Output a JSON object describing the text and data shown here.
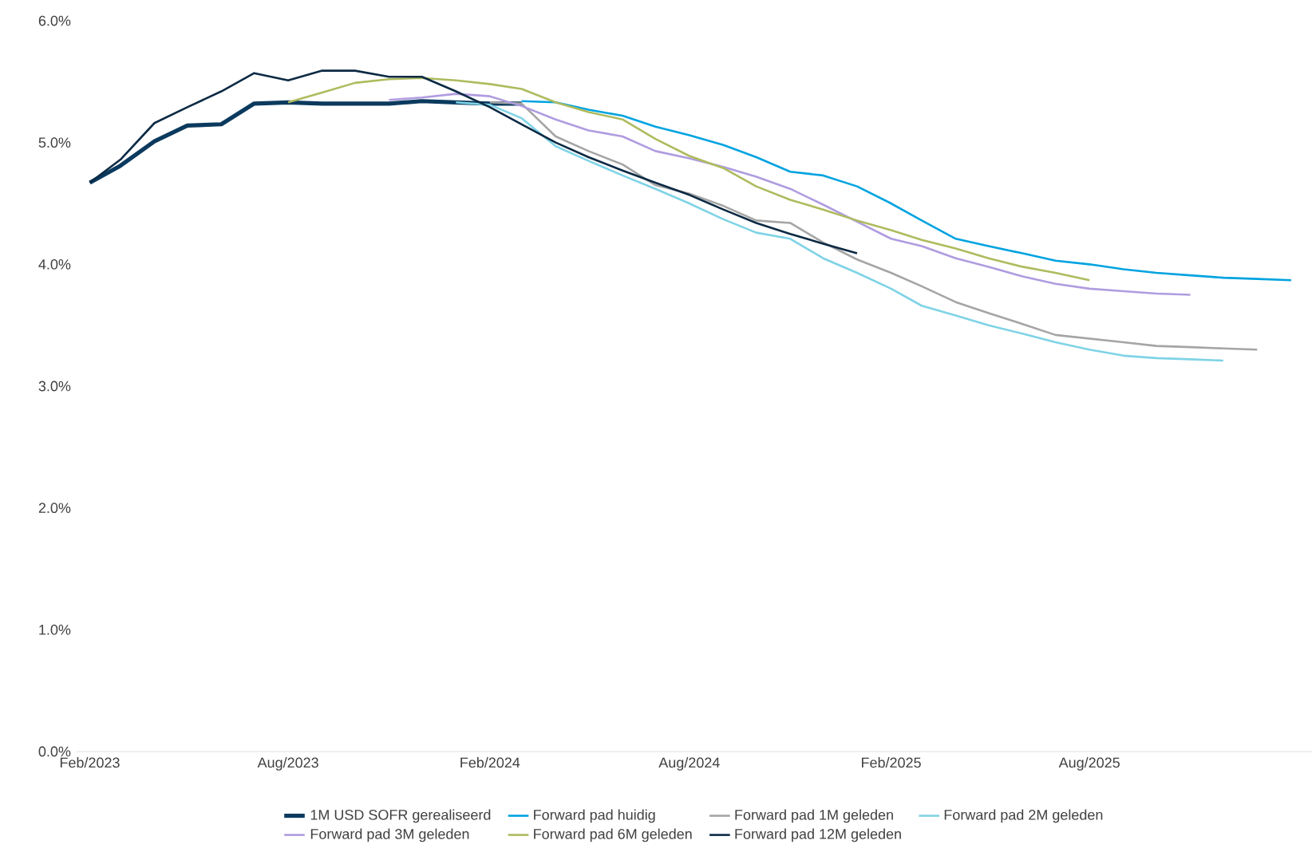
{
  "chart_data": {
    "type": "line",
    "xlim": [
      "2023-01-20",
      "2026-02-20"
    ],
    "xticks": [
      {
        "value": "2023-02",
        "label": "Feb/2023"
      },
      {
        "value": "2023-08",
        "label": "Aug/2023"
      },
      {
        "value": "2024-02",
        "label": "Feb/2024"
      },
      {
        "value": "2024-08",
        "label": "Aug/2024"
      },
      {
        "value": "2025-02",
        "label": "Feb/2025"
      },
      {
        "value": "2025-08",
        "label": "Aug/2025"
      }
    ],
    "ylim": [
      0,
      6
    ],
    "yticks": [
      {
        "value": 0,
        "label": "0.0%"
      },
      {
        "value": 1,
        "label": "1.0%"
      },
      {
        "value": 2,
        "label": "2.0%"
      },
      {
        "value": 3,
        "label": "3.0%"
      },
      {
        "value": 4,
        "label": "4.0%"
      },
      {
        "value": 5,
        "label": "5.0%"
      },
      {
        "value": 6,
        "label": "6.0%"
      }
    ],
    "grid": false,
    "legend": "bottom",
    "marker": "none",
    "line_style": "solid",
    "series": [
      {
        "name": "1M USD SOFR gerealiseerd",
        "color": "#0b3a5e",
        "x": [
          "2023-02",
          "2023-03",
          "2023-04",
          "2023-05",
          "2023-06",
          "2023-07",
          "2023-08",
          "2023-09",
          "2023-10",
          "2023-11",
          "2023-12",
          "2024-01",
          "2024-02",
          "2024-03"
        ],
        "values": [
          4.67,
          4.81,
          5.01,
          5.14,
          5.15,
          5.32,
          5.33,
          5.32,
          5.32,
          5.32,
          5.34,
          5.33,
          5.32,
          5.32
        ]
      },
      {
        "name": "Forward pad huidig",
        "color": "#00a3e0",
        "x": [
          "2024-03",
          "2024-04",
          "2024-05",
          "2024-06",
          "2024-07",
          "2024-08",
          "2024-09",
          "2024-10",
          "2024-11",
          "2024-12",
          "2025-01",
          "2025-02",
          "2025-03",
          "2025-04",
          "2025-05",
          "2025-06",
          "2025-07",
          "2025-08",
          "2025-09",
          "2025-10",
          "2025-11",
          "2025-12",
          "2026-01",
          "2026-02"
        ],
        "values": [
          5.34,
          5.33,
          5.27,
          5.22,
          5.13,
          5.06,
          4.98,
          4.88,
          4.76,
          4.73,
          4.64,
          4.5,
          4.36,
          4.21,
          4.15,
          4.09,
          4.03,
          4.0,
          3.96,
          3.93,
          3.91,
          3.89,
          3.88,
          3.87
        ]
      },
      {
        "name": "Forward pad 1M geleden",
        "color": "#a5a5a5",
        "x": [
          "2024-02",
          "2024-03",
          "2024-04",
          "2024-05",
          "2024-06",
          "2024-07",
          "2024-08",
          "2024-09",
          "2024-10",
          "2024-11",
          "2024-12",
          "2025-01",
          "2025-02",
          "2025-03",
          "2025-04",
          "2025-05",
          "2025-06",
          "2025-07",
          "2025-08",
          "2025-09",
          "2025-10",
          "2025-11",
          "2025-12",
          "2026-01"
        ],
        "values": [
          5.33,
          5.32,
          5.05,
          4.93,
          4.82,
          4.65,
          4.58,
          4.48,
          4.36,
          4.34,
          4.18,
          4.04,
          3.93,
          3.82,
          3.69,
          3.6,
          3.51,
          3.42,
          3.39,
          3.36,
          3.33,
          3.32,
          3.31,
          3.3
        ]
      },
      {
        "name": "Forward pad 2M geleden",
        "color": "#7fd3e6",
        "x": [
          "2024-01",
          "2024-02",
          "2024-03",
          "2024-04",
          "2024-05",
          "2024-06",
          "2024-07",
          "2024-08",
          "2024-09",
          "2024-10",
          "2024-11",
          "2024-12",
          "2025-01",
          "2025-02",
          "2025-03",
          "2025-04",
          "2025-05",
          "2025-06",
          "2025-07",
          "2025-08",
          "2025-09",
          "2025-10",
          "2025-11",
          "2025-12"
        ],
        "values": [
          5.33,
          5.31,
          5.2,
          4.97,
          4.85,
          4.73,
          4.62,
          4.5,
          4.37,
          4.26,
          4.21,
          4.05,
          3.93,
          3.8,
          3.66,
          3.58,
          3.5,
          3.43,
          3.36,
          3.3,
          3.25,
          3.23,
          3.22,
          3.21
        ]
      },
      {
        "name": "Forward pad 3M geleden",
        "color": "#b09ce0",
        "x": [
          "2023-11",
          "2023-12",
          "2024-01",
          "2024-02",
          "2024-03",
          "2024-04",
          "2024-05",
          "2024-06",
          "2024-07",
          "2024-08",
          "2024-09",
          "2024-10",
          "2024-11",
          "2024-12",
          "2025-01",
          "2025-02",
          "2025-03",
          "2025-04",
          "2025-05",
          "2025-06",
          "2025-07",
          "2025-08",
          "2025-09",
          "2025-10",
          "2025-11"
        ],
        "values": [
          5.35,
          5.37,
          5.4,
          5.38,
          5.3,
          5.19,
          5.1,
          5.05,
          4.93,
          4.87,
          4.8,
          4.72,
          4.62,
          4.49,
          4.35,
          4.21,
          4.15,
          4.05,
          3.98,
          3.9,
          3.84,
          3.8,
          3.78,
          3.76,
          3.75
        ]
      },
      {
        "name": "Forward pad 6M geleden",
        "color": "#afbb5e",
        "x": [
          "2023-08",
          "2023-09",
          "2023-10",
          "2023-11",
          "2023-12",
          "2024-01",
          "2024-02",
          "2024-03",
          "2024-04",
          "2024-05",
          "2024-06",
          "2024-07",
          "2024-08",
          "2024-09",
          "2024-10",
          "2024-11",
          "2024-12",
          "2025-01",
          "2025-02",
          "2025-03",
          "2025-04",
          "2025-05",
          "2025-06",
          "2025-07",
          "2025-08"
        ],
        "values": [
          5.33,
          5.41,
          5.49,
          5.52,
          5.53,
          5.51,
          5.48,
          5.44,
          5.33,
          5.25,
          5.19,
          5.03,
          4.89,
          4.79,
          4.64,
          4.53,
          4.45,
          4.36,
          4.28,
          4.2,
          4.13,
          4.05,
          3.98,
          3.93,
          3.87
        ]
      },
      {
        "name": "Forward pad 12M geleden",
        "color": "#0c2a44",
        "x": [
          "2023-02",
          "2023-03",
          "2023-04",
          "2023-05",
          "2023-06",
          "2023-07",
          "2023-08",
          "2023-09",
          "2023-10",
          "2023-11",
          "2023-12",
          "2024-01",
          "2024-02",
          "2024-03",
          "2024-04",
          "2024-05",
          "2024-06",
          "2024-07",
          "2024-08",
          "2024-09",
          "2024-10",
          "2024-11",
          "2024-12",
          "2025-01"
        ],
        "values": [
          4.67,
          4.86,
          5.16,
          5.29,
          5.42,
          5.57,
          5.51,
          5.59,
          5.59,
          5.54,
          5.54,
          5.42,
          5.29,
          5.15,
          5.0,
          4.88,
          4.77,
          4.67,
          4.57,
          4.45,
          4.34,
          4.25,
          4.17,
          4.09
        ]
      }
    ]
  }
}
